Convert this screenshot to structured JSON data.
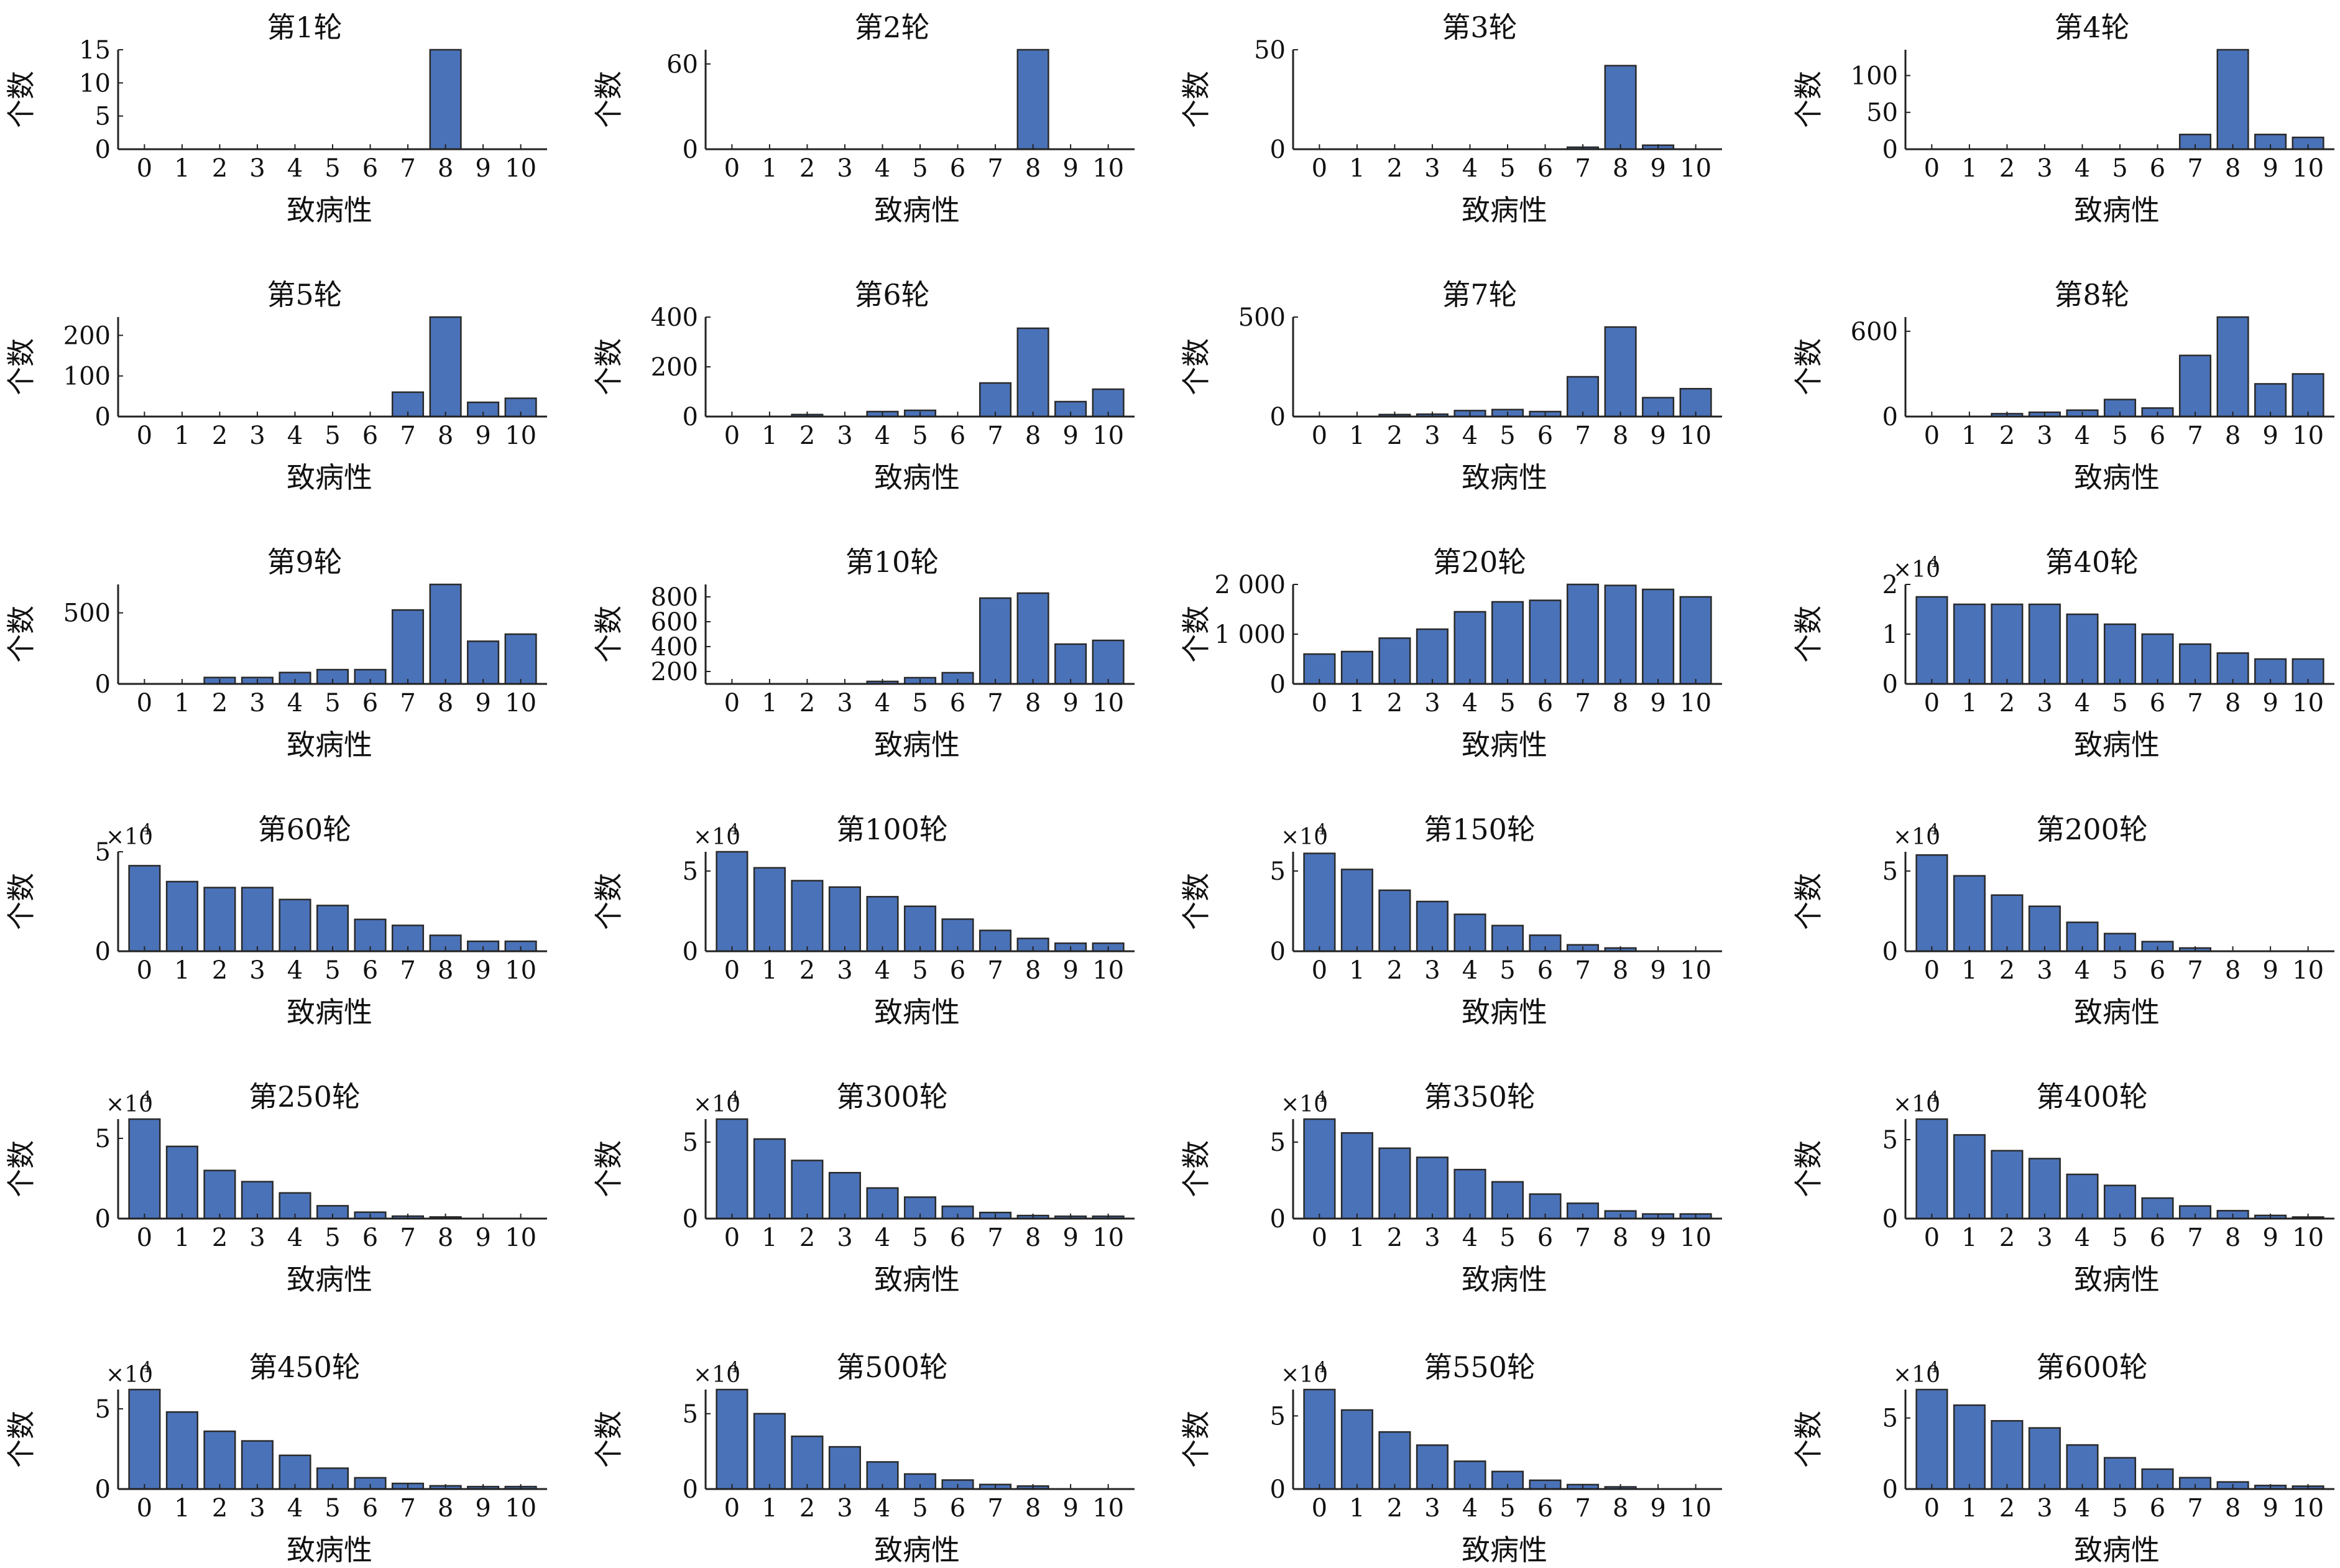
{
  "style": {
    "bar_color": "#4a72b8",
    "bar_edge": "#2a2a2a"
  },
  "chart_data": [
    {
      "type": "bar",
      "title": "第1轮",
      "xlabel": "致病性",
      "ylabel": "个数",
      "categories": [
        "0",
        "1",
        "2",
        "3",
        "4",
        "5",
        "6",
        "7",
        "8",
        "9",
        "10"
      ],
      "values": [
        0,
        0,
        0,
        0,
        0,
        0,
        0,
        0,
        15,
        0,
        0
      ],
      "ylim": [
        0,
        15
      ],
      "yticks": [
        "0",
        "5",
        "10",
        "15"
      ],
      "ytick_values": [
        0,
        5,
        10,
        15
      ]
    },
    {
      "type": "bar",
      "title": "第2轮",
      "xlabel": "致病性",
      "ylabel": "个数",
      "categories": [
        "0",
        "1",
        "2",
        "3",
        "4",
        "5",
        "6",
        "7",
        "8",
        "9",
        "10"
      ],
      "values": [
        0,
        0,
        0,
        0,
        0,
        0,
        0,
        0,
        70,
        0,
        0
      ],
      "ylim": [
        0,
        70
      ],
      "yticks": [
        "0",
        "60"
      ],
      "ytick_values": [
        0,
        60
      ]
    },
    {
      "type": "bar",
      "title": "第3轮",
      "xlabel": "致病性",
      "ylabel": "个数",
      "categories": [
        "0",
        "1",
        "2",
        "3",
        "4",
        "5",
        "6",
        "7",
        "8",
        "9",
        "10"
      ],
      "values": [
        0,
        0,
        0,
        0,
        0,
        0,
        0,
        1,
        42,
        2,
        0
      ],
      "ylim": [
        0,
        50
      ],
      "yticks": [
        "0",
        "50"
      ],
      "ytick_values": [
        0,
        50
      ]
    },
    {
      "type": "bar",
      "title": "第4轮",
      "xlabel": "致病性",
      "ylabel": "个数",
      "categories": [
        "0",
        "1",
        "2",
        "3",
        "4",
        "5",
        "6",
        "7",
        "8",
        "9",
        "10"
      ],
      "values": [
        0,
        0,
        0,
        0,
        0,
        0,
        0,
        20,
        135,
        20,
        16
      ],
      "ylim": [
        0,
        135
      ],
      "yticks": [
        "0",
        "50",
        "100"
      ],
      "ytick_values": [
        0,
        50,
        100
      ]
    },
    {
      "type": "bar",
      "title": "第5轮",
      "xlabel": "致病性",
      "ylabel": "个数",
      "categories": [
        "0",
        "1",
        "2",
        "3",
        "4",
        "5",
        "6",
        "7",
        "8",
        "9",
        "10"
      ],
      "values": [
        0,
        0,
        0,
        0,
        0,
        0,
        0,
        60,
        245,
        35,
        45
      ],
      "ylim": [
        0,
        245
      ],
      "yticks": [
        "0",
        "100",
        "200"
      ],
      "ytick_values": [
        0,
        100,
        200
      ]
    },
    {
      "type": "bar",
      "title": "第6轮",
      "xlabel": "致病性",
      "ylabel": "个数",
      "categories": [
        "0",
        "1",
        "2",
        "3",
        "4",
        "5",
        "6",
        "7",
        "8",
        "9",
        "10"
      ],
      "values": [
        0,
        0,
        8,
        0,
        20,
        25,
        0,
        135,
        355,
        60,
        110
      ],
      "ylim": [
        0,
        400
      ],
      "yticks": [
        "0",
        "200",
        "400"
      ],
      "ytick_values": [
        0,
        200,
        400
      ]
    },
    {
      "type": "bar",
      "title": "第7轮",
      "xlabel": "致病性",
      "ylabel": "个数",
      "categories": [
        "0",
        "1",
        "2",
        "3",
        "4",
        "5",
        "6",
        "7",
        "8",
        "9",
        "10"
      ],
      "values": [
        0,
        0,
        10,
        12,
        30,
        35,
        25,
        200,
        450,
        95,
        140
      ],
      "ylim": [
        0,
        500
      ],
      "yticks": [
        "0",
        "500"
      ],
      "ytick_values": [
        0,
        500
      ]
    },
    {
      "type": "bar",
      "title": "第8轮",
      "xlabel": "致病性",
      "ylabel": "个数",
      "categories": [
        "0",
        "1",
        "2",
        "3",
        "4",
        "5",
        "6",
        "7",
        "8",
        "9",
        "10"
      ],
      "values": [
        0,
        0,
        20,
        30,
        45,
        120,
        60,
        430,
        700,
        230,
        300
      ],
      "ylim": [
        0,
        700
      ],
      "yticks": [
        "0",
        "600"
      ],
      "ytick_values": [
        0,
        600
      ]
    },
    {
      "type": "bar",
      "title": "第9轮",
      "xlabel": "致病性",
      "ylabel": "个数",
      "categories": [
        "0",
        "1",
        "2",
        "3",
        "4",
        "5",
        "6",
        "7",
        "8",
        "9",
        "10"
      ],
      "values": [
        0,
        0,
        45,
        45,
        80,
        100,
        100,
        520,
        700,
        300,
        350
      ],
      "ylim": [
        0,
        700
      ],
      "yticks": [
        "0",
        "500"
      ],
      "ytick_values": [
        0,
        500
      ]
    },
    {
      "type": "bar",
      "title": "第10轮",
      "xlabel": "致病性",
      "ylabel": "个数",
      "categories": [
        "0",
        "1",
        "2",
        "3",
        "4",
        "5",
        "6",
        "7",
        "8",
        "9",
        "10"
      ],
      "values": [
        0,
        0,
        0,
        0,
        120,
        150,
        190,
        790,
        830,
        420,
        450
      ],
      "ylim": [
        100,
        900
      ],
      "yticks": [
        "200",
        "400",
        "600",
        "800"
      ],
      "ytick_values": [
        200,
        400,
        600,
        800
      ]
    },
    {
      "type": "bar",
      "title": "第20轮",
      "xlabel": "致病性",
      "ylabel": "个数",
      "categories": [
        "0",
        "1",
        "2",
        "3",
        "4",
        "5",
        "6",
        "7",
        "8",
        "9",
        "10"
      ],
      "values": [
        600,
        650,
        920,
        1100,
        1450,
        1650,
        1680,
        2000,
        1980,
        1900,
        1750
      ],
      "ylim": [
        0,
        2000
      ],
      "yticks": [
        "0",
        "1 000",
        "2 000"
      ],
      "ytick_values": [
        0,
        1000,
        2000
      ]
    },
    {
      "type": "bar",
      "title": "第40轮",
      "xlabel": "致病性",
      "ylabel": "个数",
      "multiplier": "×10",
      "multiplier_exp": "4",
      "categories": [
        "0",
        "1",
        "2",
        "3",
        "4",
        "5",
        "6",
        "7",
        "8",
        "9",
        "10"
      ],
      "values": [
        1.75,
        1.6,
        1.6,
        1.6,
        1.4,
        1.2,
        1.0,
        0.8,
        0.62,
        0.5,
        0.5
      ],
      "ylim": [
        0,
        2
      ],
      "yticks": [
        "0",
        "1",
        "2"
      ],
      "ytick_values": [
        0,
        1,
        2
      ]
    },
    {
      "type": "bar",
      "title": "第60轮",
      "xlabel": "致病性",
      "ylabel": "个数",
      "multiplier": "×10",
      "multiplier_exp": "4",
      "categories": [
        "0",
        "1",
        "2",
        "3",
        "4",
        "5",
        "6",
        "7",
        "8",
        "9",
        "10"
      ],
      "values": [
        4.3,
        3.5,
        3.2,
        3.2,
        2.6,
        2.3,
        1.6,
        1.3,
        0.8,
        0.5,
        0.5
      ],
      "ylim": [
        0,
        5
      ],
      "yticks": [
        "0",
        "5"
      ],
      "ytick_values": [
        0,
        5
      ]
    },
    {
      "type": "bar",
      "title": "第100轮",
      "xlabel": "致病性",
      "ylabel": "个数",
      "multiplier": "×10",
      "multiplier_exp": "4",
      "categories": [
        "0",
        "1",
        "2",
        "3",
        "4",
        "5",
        "6",
        "7",
        "8",
        "9",
        "10"
      ],
      "values": [
        6.2,
        5.2,
        4.4,
        4.0,
        3.4,
        2.8,
        2.0,
        1.3,
        0.8,
        0.5,
        0.5
      ],
      "ylim": [
        0,
        6.2
      ],
      "yticks": [
        "0",
        "5"
      ],
      "ytick_values": [
        0,
        5
      ]
    },
    {
      "type": "bar",
      "title": "第150轮",
      "xlabel": "致病性",
      "ylabel": "个数",
      "multiplier": "×10",
      "multiplier_exp": "4",
      "categories": [
        "0",
        "1",
        "2",
        "3",
        "4",
        "5",
        "6",
        "7",
        "8",
        "9",
        "10"
      ],
      "values": [
        6.1,
        5.1,
        3.8,
        3.1,
        2.3,
        1.6,
        1.0,
        0.4,
        0.2,
        0,
        0
      ],
      "ylim": [
        0,
        6.2
      ],
      "yticks": [
        "0",
        "5"
      ],
      "ytick_values": [
        0,
        5
      ]
    },
    {
      "type": "bar",
      "title": "第200轮",
      "xlabel": "致病性",
      "ylabel": "个数",
      "multiplier": "×10",
      "multiplier_exp": "4",
      "categories": [
        "0",
        "1",
        "2",
        "3",
        "4",
        "5",
        "6",
        "7",
        "8",
        "9",
        "10"
      ],
      "values": [
        6.0,
        4.7,
        3.5,
        2.8,
        1.8,
        1.1,
        0.6,
        0.2,
        0,
        0,
        0
      ],
      "ylim": [
        0,
        6.2
      ],
      "yticks": [
        "0",
        "5"
      ],
      "ytick_values": [
        0,
        5
      ]
    },
    {
      "type": "bar",
      "title": "第250轮",
      "xlabel": "致病性",
      "ylabel": "个数",
      "multiplier": "×10",
      "multiplier_exp": "4",
      "categories": [
        "0",
        "1",
        "2",
        "3",
        "4",
        "5",
        "6",
        "7",
        "8",
        "9",
        "10"
      ],
      "values": [
        6.2,
        4.5,
        3.0,
        2.3,
        1.6,
        0.8,
        0.4,
        0.15,
        0.1,
        0,
        0
      ],
      "ylim": [
        0,
        6.2
      ],
      "yticks": [
        "0",
        "5"
      ],
      "ytick_values": [
        0,
        5
      ]
    },
    {
      "type": "bar",
      "title": "第300轮",
      "xlabel": "致病性",
      "ylabel": "个数",
      "multiplier": "×10",
      "multiplier_exp": "4",
      "categories": [
        "0",
        "1",
        "2",
        "3",
        "4",
        "5",
        "6",
        "7",
        "8",
        "9",
        "10"
      ],
      "values": [
        6.5,
        5.2,
        3.8,
        3.0,
        2.0,
        1.4,
        0.8,
        0.4,
        0.2,
        0.15,
        0.15
      ],
      "ylim": [
        0,
        6.5
      ],
      "yticks": [
        "0",
        "5"
      ],
      "ytick_values": [
        0,
        5
      ]
    },
    {
      "type": "bar",
      "title": "第350轮",
      "xlabel": "致病性",
      "ylabel": "个数",
      "multiplier": "×10",
      "multiplier_exp": "4",
      "categories": [
        "0",
        "1",
        "2",
        "3",
        "4",
        "5",
        "6",
        "7",
        "8",
        "9",
        "10"
      ],
      "values": [
        6.5,
        5.6,
        4.6,
        4.0,
        3.2,
        2.4,
        1.6,
        1.0,
        0.5,
        0.3,
        0.3
      ],
      "ylim": [
        0,
        6.5
      ],
      "yticks": [
        "0",
        "5"
      ],
      "ytick_values": [
        0,
        5
      ]
    },
    {
      "type": "bar",
      "title": "第400轮",
      "xlabel": "致病性",
      "ylabel": "个数",
      "multiplier": "×10",
      "multiplier_exp": "4",
      "categories": [
        "0",
        "1",
        "2",
        "3",
        "4",
        "5",
        "6",
        "7",
        "8",
        "9",
        "10"
      ],
      "values": [
        6.3,
        5.3,
        4.3,
        3.8,
        2.8,
        2.1,
        1.3,
        0.8,
        0.5,
        0.2,
        0.1
      ],
      "ylim": [
        0,
        6.3
      ],
      "yticks": [
        "0",
        "5"
      ],
      "ytick_values": [
        0,
        5
      ]
    },
    {
      "type": "bar",
      "title": "第450轮",
      "xlabel": "致病性",
      "ylabel": "个数",
      "multiplier": "×10",
      "multiplier_exp": "4",
      "categories": [
        "0",
        "1",
        "2",
        "3",
        "4",
        "5",
        "6",
        "7",
        "8",
        "9",
        "10"
      ],
      "values": [
        6.2,
        4.8,
        3.6,
        3.0,
        2.1,
        1.3,
        0.7,
        0.35,
        0.2,
        0.15,
        0.15
      ],
      "ylim": [
        0,
        6.2
      ],
      "yticks": [
        "0",
        "5"
      ],
      "ytick_values": [
        0,
        5
      ]
    },
    {
      "type": "bar",
      "title": "第500轮",
      "xlabel": "致病性",
      "ylabel": "个数",
      "multiplier": "×10",
      "multiplier_exp": "4",
      "categories": [
        "0",
        "1",
        "2",
        "3",
        "4",
        "5",
        "6",
        "7",
        "8",
        "9",
        "10"
      ],
      "values": [
        6.6,
        5.0,
        3.5,
        2.8,
        1.8,
        1.0,
        0.6,
        0.3,
        0.2,
        0,
        0
      ],
      "ylim": [
        0,
        6.6
      ],
      "yticks": [
        "0",
        "5"
      ],
      "ytick_values": [
        0,
        5
      ]
    },
    {
      "type": "bar",
      "title": "第550轮",
      "xlabel": "致病性",
      "ylabel": "个数",
      "multiplier": "×10",
      "multiplier_exp": "4",
      "categories": [
        "0",
        "1",
        "2",
        "3",
        "4",
        "5",
        "6",
        "7",
        "8",
        "9",
        "10"
      ],
      "values": [
        6.8,
        5.4,
        3.9,
        3.0,
        1.9,
        1.2,
        0.6,
        0.3,
        0.15,
        0,
        0
      ],
      "ylim": [
        0,
        6.8
      ],
      "yticks": [
        "0",
        "5"
      ],
      "ytick_values": [
        0,
        5
      ]
    },
    {
      "type": "bar",
      "title": "第600轮",
      "xlabel": "致病性",
      "ylabel": "个数",
      "multiplier": "×10",
      "multiplier_exp": "4",
      "categories": [
        "0",
        "1",
        "2",
        "3",
        "4",
        "5",
        "6",
        "7",
        "8",
        "9",
        "10"
      ],
      "values": [
        7.0,
        5.9,
        4.8,
        4.3,
        3.1,
        2.2,
        1.4,
        0.8,
        0.5,
        0.25,
        0.2
      ],
      "ylim": [
        0,
        7.0
      ],
      "yticks": [
        "0",
        "5"
      ],
      "ytick_values": [
        0,
        5
      ]
    }
  ]
}
